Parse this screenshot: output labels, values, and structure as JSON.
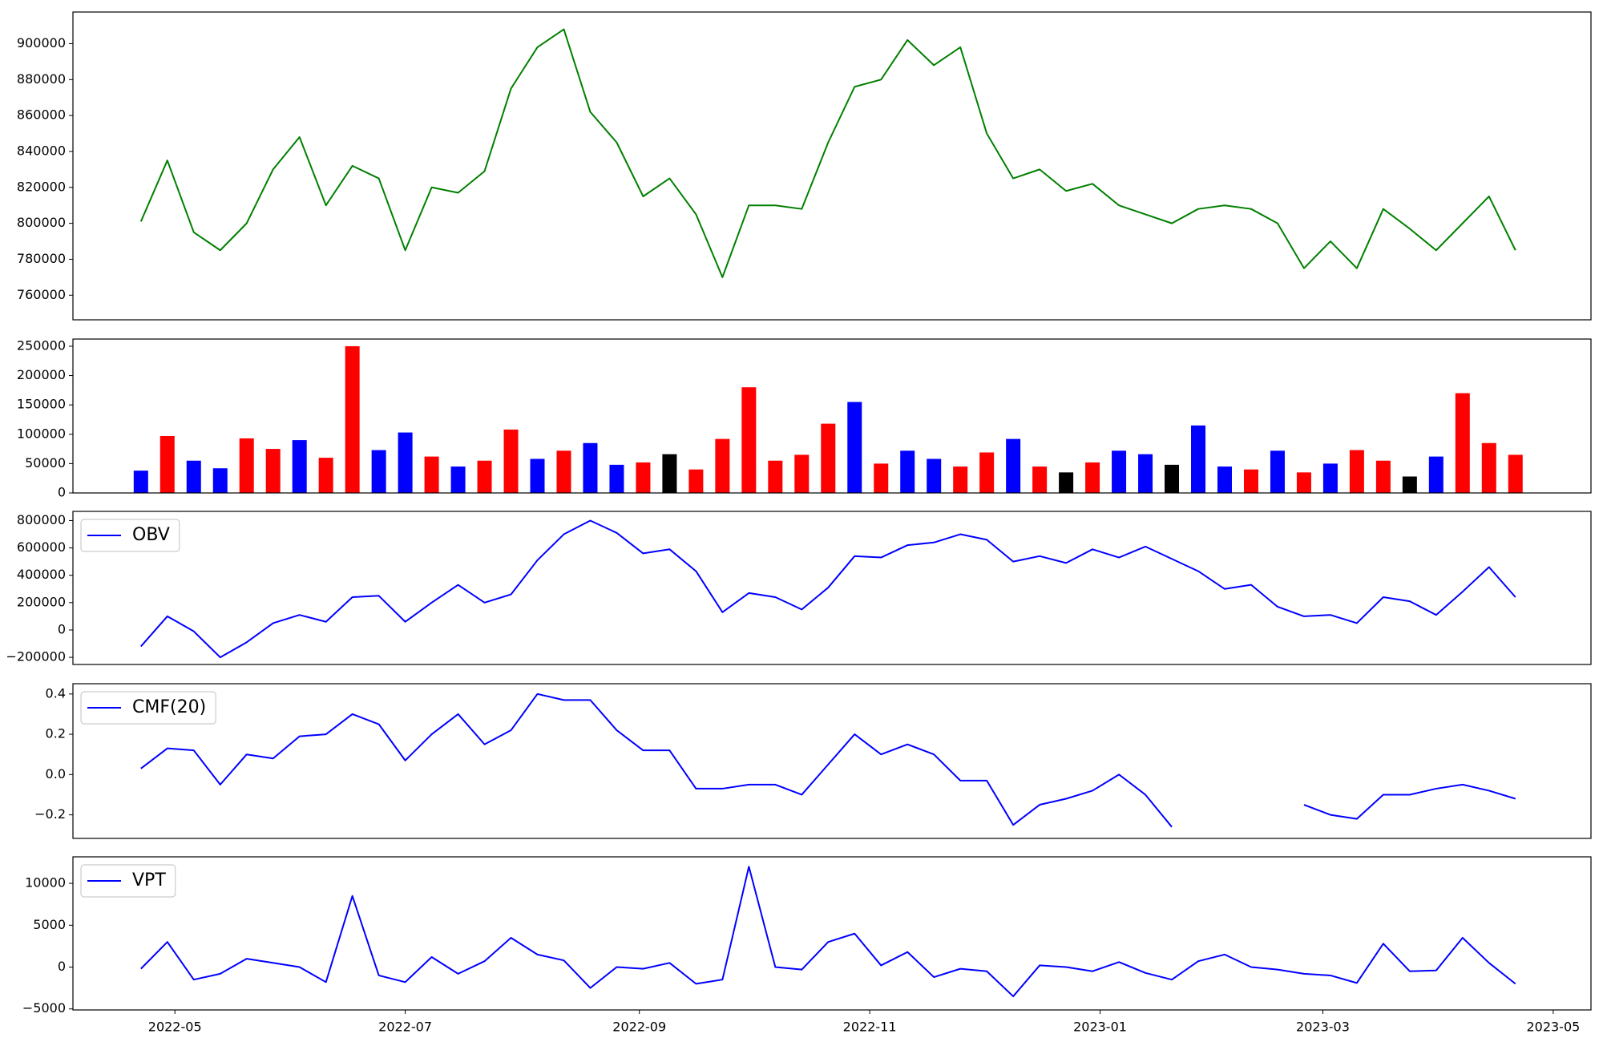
{
  "chart_data": [
    {
      "type": "line",
      "color": "#008000",
      "x": [
        "2022-04-22",
        "2022-04-29",
        "2022-05-06",
        "2022-05-13",
        "2022-05-20",
        "2022-05-27",
        "2022-06-03",
        "2022-06-10",
        "2022-06-17",
        "2022-06-24",
        "2022-07-01",
        "2022-07-08",
        "2022-07-15",
        "2022-07-22",
        "2022-07-29",
        "2022-08-05",
        "2022-08-12",
        "2022-08-19",
        "2022-08-26",
        "2022-09-02",
        "2022-09-09",
        "2022-09-16",
        "2022-09-23",
        "2022-09-30",
        "2022-10-07",
        "2022-10-14",
        "2022-10-21",
        "2022-10-28",
        "2022-11-04",
        "2022-11-11",
        "2022-11-18",
        "2022-11-25",
        "2022-12-02",
        "2022-12-09",
        "2022-12-16",
        "2022-12-23",
        "2022-12-30",
        "2023-01-06",
        "2023-01-13",
        "2023-01-20",
        "2023-01-27",
        "2023-02-03",
        "2023-02-10",
        "2023-02-17",
        "2023-02-24",
        "2023-03-03",
        "2023-03-10",
        "2023-03-17",
        "2023-03-24",
        "2023-03-31",
        "2023-04-07",
        "2023-04-14",
        "2023-04-21"
      ],
      "values": [
        801000,
        835000,
        795000,
        785000,
        800000,
        830000,
        848000,
        810000,
        832000,
        825000,
        785000,
        820000,
        817000,
        829000,
        875000,
        898000,
        908000,
        862000,
        845000,
        815000,
        825000,
        805000,
        770000,
        810000,
        810000,
        808000,
        845000,
        876000,
        880000,
        902000,
        888000,
        898000,
        850000,
        825000,
        830000,
        818000,
        822000,
        810000,
        805000,
        800000,
        808000,
        810000,
        808000,
        800000,
        775000,
        790000,
        775000,
        808000,
        797000,
        785000,
        800000,
        815000,
        785000
      ],
      "xlim": [
        "2022-04-04",
        "2023-05-11"
      ],
      "ylim": [
        746300,
        917600
      ],
      "yticks": [
        760000,
        780000,
        800000,
        820000,
        840000,
        860000,
        880000,
        900000
      ]
    },
    {
      "type": "bar",
      "x": [
        "2022-04-22",
        "2022-04-29",
        "2022-05-06",
        "2022-05-13",
        "2022-05-20",
        "2022-05-27",
        "2022-06-03",
        "2022-06-10",
        "2022-06-17",
        "2022-06-24",
        "2022-07-01",
        "2022-07-08",
        "2022-07-15",
        "2022-07-22",
        "2022-07-29",
        "2022-08-05",
        "2022-08-12",
        "2022-08-19",
        "2022-08-26",
        "2022-09-02",
        "2022-09-09",
        "2022-09-16",
        "2022-09-23",
        "2022-09-30",
        "2022-10-07",
        "2022-10-14",
        "2022-10-21",
        "2022-10-28",
        "2022-11-04",
        "2022-11-11",
        "2022-11-18",
        "2022-11-25",
        "2022-12-02",
        "2022-12-09",
        "2022-12-16",
        "2022-12-23",
        "2022-12-30",
        "2023-01-06",
        "2023-01-13",
        "2023-01-20",
        "2023-01-27",
        "2023-02-03",
        "2023-02-10",
        "2023-02-17",
        "2023-02-24",
        "2023-03-03",
        "2023-03-10",
        "2023-03-17",
        "2023-03-24",
        "2023-03-31",
        "2023-04-07",
        "2023-04-14",
        "2023-04-21"
      ],
      "values": [
        38000,
        97000,
        55000,
        42000,
        93000,
        75000,
        90000,
        60000,
        250000,
        73000,
        103000,
        62000,
        45000,
        55000,
        108000,
        58000,
        72000,
        85000,
        48000,
        52000,
        66000,
        40000,
        92000,
        180000,
        55000,
        65000,
        118000,
        155000,
        50000,
        72000,
        58000,
        45000,
        69000,
        92000,
        45000,
        35000,
        52000,
        72000,
        66000,
        48000,
        115000,
        45000,
        40000,
        72000,
        35000,
        50000,
        73000,
        55000,
        28000,
        62000,
        170000,
        85000,
        65000
      ],
      "colors": [
        "#0000ff",
        "#ff0000",
        "#0000ff",
        "#0000ff",
        "#ff0000",
        "#ff0000",
        "#0000ff",
        "#ff0000",
        "#ff0000",
        "#0000ff",
        "#0000ff",
        "#ff0000",
        "#0000ff",
        "#ff0000",
        "#ff0000",
        "#0000ff",
        "#ff0000",
        "#0000ff",
        "#0000ff",
        "#ff0000",
        "#000000",
        "#ff0000",
        "#ff0000",
        "#ff0000",
        "#ff0000",
        "#ff0000",
        "#ff0000",
        "#0000ff",
        "#ff0000",
        "#0000ff",
        "#0000ff",
        "#ff0000",
        "#ff0000",
        "#0000ff",
        "#ff0000",
        "#000000",
        "#ff0000",
        "#0000ff",
        "#0000ff",
        "#000000",
        "#0000ff",
        "#0000ff",
        "#ff0000",
        "#0000ff",
        "#ff0000",
        "#0000ff",
        "#ff0000",
        "#ff0000",
        "#000000",
        "#0000ff",
        "#ff0000",
        "#ff0000",
        "#ff0000"
      ],
      "xlim": [
        "2022-04-04",
        "2023-05-11"
      ],
      "ylim": [
        0,
        262200
      ],
      "yticks": [
        0,
        50000,
        100000,
        150000,
        200000,
        250000
      ]
    },
    {
      "type": "line",
      "legend": "upper left",
      "x": [
        "2022-04-22",
        "2022-04-29",
        "2022-05-06",
        "2022-05-13",
        "2022-05-20",
        "2022-05-27",
        "2022-06-03",
        "2022-06-10",
        "2022-06-17",
        "2022-06-24",
        "2022-07-01",
        "2022-07-08",
        "2022-07-15",
        "2022-07-22",
        "2022-07-29",
        "2022-08-05",
        "2022-08-12",
        "2022-08-19",
        "2022-08-26",
        "2022-09-02",
        "2022-09-09",
        "2022-09-16",
        "2022-09-23",
        "2022-09-30",
        "2022-10-07",
        "2022-10-14",
        "2022-10-21",
        "2022-10-28",
        "2022-11-04",
        "2022-11-11",
        "2022-11-18",
        "2022-11-25",
        "2022-12-02",
        "2022-12-09",
        "2022-12-16",
        "2022-12-23",
        "2022-12-30",
        "2023-01-06",
        "2023-01-13",
        "2023-01-20",
        "2023-01-27",
        "2023-02-03",
        "2023-02-10",
        "2023-02-17",
        "2023-02-24",
        "2023-03-03",
        "2023-03-10",
        "2023-03-17",
        "2023-03-24",
        "2023-03-31",
        "2023-04-07",
        "2023-04-14",
        "2023-04-21"
      ],
      "series": [
        {
          "name": "OBV",
          "color": "#0000ff",
          "values": [
            -120000,
            100000,
            -10000,
            -200000,
            -90000,
            50000,
            110000,
            60000,
            240000,
            250000,
            60000,
            200000,
            330000,
            200000,
            260000,
            510000,
            700000,
            800000,
            710000,
            560000,
            590000,
            430000,
            130000,
            270000,
            240000,
            150000,
            310000,
            540000,
            530000,
            620000,
            640000,
            700000,
            660000,
            500000,
            540000,
            490000,
            590000,
            530000,
            610000,
            520000,
            430000,
            300000,
            330000,
            170000,
            100000,
            110000,
            50000,
            240000,
            210000,
            110000,
            280000,
            460000,
            240000
          ]
        }
      ],
      "xlim": [
        "2022-04-04",
        "2023-05-11"
      ],
      "ylim": [
        -252200,
        867200
      ],
      "yticks": [
        {
          "value": -200000,
          "label": "−200000"
        },
        0,
        200000,
        400000,
        600000,
        800000
      ]
    },
    {
      "type": "line",
      "legend": "upper left",
      "x": [
        "2022-04-22",
        "2022-04-29",
        "2022-05-06",
        "2022-05-13",
        "2022-05-20",
        "2022-05-27",
        "2022-06-03",
        "2022-06-10",
        "2022-06-17",
        "2022-06-24",
        "2022-07-01",
        "2022-07-08",
        "2022-07-15",
        "2022-07-22",
        "2022-07-29",
        "2022-08-05",
        "2022-08-12",
        "2022-08-19",
        "2022-08-26",
        "2022-09-02",
        "2022-09-09",
        "2022-09-16",
        "2022-09-23",
        "2022-09-30",
        "2022-10-07",
        "2022-10-14",
        "2022-10-21",
        "2022-10-28",
        "2022-11-04",
        "2022-11-11",
        "2022-11-18",
        "2022-11-25",
        "2022-12-02",
        "2022-12-09",
        "2022-12-16",
        "2022-12-23",
        "2022-12-30",
        "2023-01-06",
        "2023-01-13",
        "2023-01-20",
        "2023-01-27",
        "2023-02-03",
        "2023-02-10",
        "2023-02-17",
        "2023-02-24",
        "2023-03-03",
        "2023-03-10",
        "2023-03-17",
        "2023-03-24",
        "2023-03-31",
        "2023-04-07",
        "2023-04-14",
        "2023-04-21"
      ],
      "series": [
        {
          "name": "CMF(20)",
          "color": "#0000ff",
          "values": [
            0.03,
            0.13,
            0.12,
            -0.05,
            0.1,
            0.08,
            0.19,
            0.2,
            0.3,
            0.25,
            0.07,
            0.2,
            0.3,
            0.15,
            0.22,
            0.4,
            0.37,
            0.37,
            0.22,
            0.12,
            0.12,
            -0.07,
            -0.07,
            -0.05,
            -0.05,
            -0.1,
            0.05,
            0.2,
            0.1,
            0.15,
            0.1,
            -0.03,
            -0.03,
            -0.25,
            -0.15,
            -0.12,
            -0.08,
            0.0,
            -0.1,
            -0.26,
            null,
            null,
            null,
            null,
            -0.15,
            -0.2,
            -0.22,
            -0.1,
            -0.1,
            -0.07,
            -0.05,
            -0.08,
            -0.12
          ]
        }
      ],
      "xlim": [
        "2022-04-04",
        "2023-05-11"
      ],
      "ylim": [
        -0.317,
        0.451
      ],
      "yticks": [
        {
          "value": -0.2,
          "label": "−0.2"
        },
        {
          "value": 0,
          "label": "0.0"
        },
        0.2,
        0.4
      ]
    },
    {
      "type": "line",
      "legend": "upper left",
      "x": [
        "2022-04-22",
        "2022-04-29",
        "2022-05-06",
        "2022-05-13",
        "2022-05-20",
        "2022-05-27",
        "2022-06-03",
        "2022-06-10",
        "2022-06-17",
        "2022-06-24",
        "2022-07-01",
        "2022-07-08",
        "2022-07-15",
        "2022-07-22",
        "2022-07-29",
        "2022-08-05",
        "2022-08-12",
        "2022-08-19",
        "2022-08-26",
        "2022-09-02",
        "2022-09-09",
        "2022-09-16",
        "2022-09-23",
        "2022-09-30",
        "2022-10-07",
        "2022-10-14",
        "2022-10-21",
        "2022-10-28",
        "2022-11-04",
        "2022-11-11",
        "2022-11-18",
        "2022-11-25",
        "2022-12-02",
        "2022-12-09",
        "2022-12-16",
        "2022-12-23",
        "2022-12-30",
        "2023-01-06",
        "2023-01-13",
        "2023-01-20",
        "2023-01-27",
        "2023-02-03",
        "2023-02-10",
        "2023-02-17",
        "2023-02-24",
        "2023-03-03",
        "2023-03-10",
        "2023-03-17",
        "2023-03-24",
        "2023-03-31",
        "2023-04-07",
        "2023-04-14",
        "2023-04-21"
      ],
      "series": [
        {
          "name": "VPT",
          "color": "#0000ff",
          "values": [
            -200,
            3000,
            -1500,
            -800,
            1000,
            500,
            0,
            -1800,
            8500,
            -1000,
            -1800,
            1200,
            -800,
            700,
            3500,
            1500,
            800,
            -2500,
            0,
            -200,
            500,
            -2000,
            -1500,
            12000,
            0,
            -300,
            3000,
            4000,
            200,
            1800,
            -1200,
            -200,
            -500,
            -3500,
            200,
            0,
            -500,
            600,
            -700,
            -1500,
            700,
            1500,
            0,
            -300,
            -800,
            -1000,
            -1900,
            2800,
            -500,
            -400,
            3500,
            500,
            -2000
          ]
        }
      ],
      "xlim": [
        "2022-04-04",
        "2023-05-11"
      ],
      "ylim": [
        -5122,
        13171
      ],
      "yticks": [
        {
          "value": -5000,
          "label": "−5000"
        },
        0,
        5000,
        10000
      ],
      "xticks": [
        {
          "value": "2022-05-01",
          "label": "2022-05"
        },
        {
          "value": "2022-07-01",
          "label": "2022-07"
        },
        {
          "value": "2022-09-01",
          "label": "2022-09"
        },
        {
          "value": "2022-11-01",
          "label": "2022-11"
        },
        {
          "value": "2023-01-01",
          "label": "2023-01"
        },
        {
          "value": "2023-03-01",
          "label": "2023-03"
        },
        {
          "value": "2023-05-01",
          "label": "2023-05"
        }
      ]
    }
  ]
}
